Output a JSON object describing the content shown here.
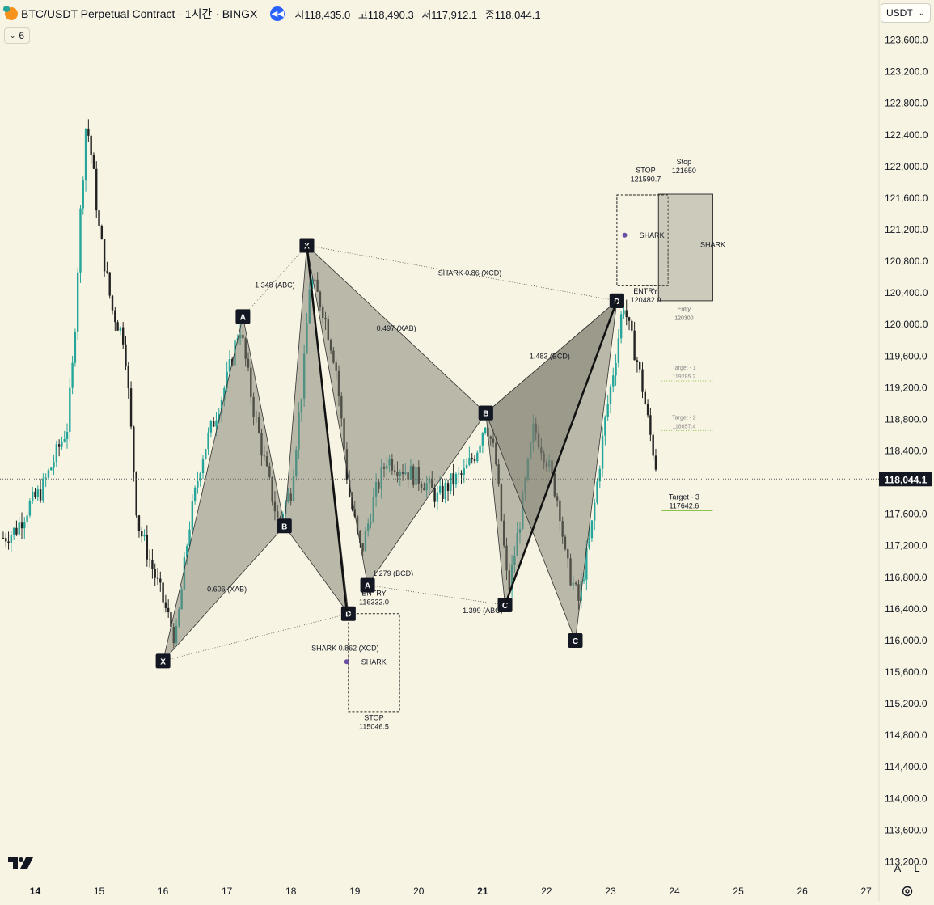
{
  "header": {
    "symbol": "BTC/USDT Perpetual Contract · 1시간 · BINGX",
    "ohlc": [
      "시118,435.0",
      "고118,490.3",
      "저117,912.1",
      "종118,044.1"
    ],
    "indicator_count": "6",
    "currency": "USDT"
  },
  "colors": {
    "background": "#f8f4e3",
    "up": "#26a69a",
    "down": "#222222",
    "pattern_fill": "#7c7b6e",
    "target_line": "#8bc34a",
    "grid_text": "#131722",
    "replay": "#2962ff"
  },
  "price_axis": {
    "labels": [
      "123,600.0",
      "123,200.0",
      "122,800.0",
      "122,400.0",
      "122,000.0",
      "121,600.0",
      "121,200.0",
      "120,800.0",
      "120,400.0",
      "120,000.0",
      "119,600.0",
      "119,200.0",
      "118,800.0",
      "118,400.0",
      "117,600.0",
      "117,200.0",
      "116,800.0",
      "116,400.0",
      "116,000.0",
      "115,600.0",
      "115,200.0",
      "114,800.0",
      "114,400.0",
      "114,000.0",
      "113,600.0",
      "113,200.0"
    ],
    "last_price": "118,044.1"
  },
  "time_axis": {
    "labels": [
      "14",
      "15",
      "16",
      "17",
      "18",
      "19",
      "20",
      "21",
      "22",
      "23",
      "24",
      "25",
      "26",
      "27"
    ],
    "bold": [
      "14",
      "21"
    ]
  },
  "chart_data": {
    "type": "line",
    "title": "BTC/USDT Perpetual Contract · 1시간 · BINGX",
    "xlabel": "",
    "ylabel": "",
    "ylim": [
      113000,
      123800
    ],
    "xlim": [
      13.45,
      27.2
    ],
    "close_last": 118044.1,
    "series": [
      {
        "x": [
          13.5,
          13.7,
          13.9,
          14.1,
          14.3,
          14.5,
          14.6,
          14.7,
          14.8,
          14.9,
          15.0,
          15.2,
          15.4,
          15.6,
          15.8,
          16.0,
          16.2,
          16.4,
          16.6,
          16.8,
          17.0,
          17.2,
          17.4,
          17.6,
          17.8,
          18.0,
          18.2,
          18.3,
          18.5,
          18.7,
          18.9,
          19.1,
          19.3,
          19.5,
          19.7,
          19.9,
          20.1,
          20.3,
          20.5,
          20.7,
          20.9,
          21.05,
          21.2,
          21.4,
          21.6,
          21.8,
          22.0,
          22.2,
          22.3,
          22.5,
          22.7,
          22.9,
          23.0,
          23.1,
          23.2,
          23.3,
          23.4,
          23.5,
          23.6,
          23.75
        ],
        "values": [
          117300,
          117400,
          117700,
          117900,
          118300,
          118700,
          119600,
          121300,
          122600,
          122000,
          121200,
          120200,
          119800,
          117500,
          117000,
          116500,
          116000,
          117400,
          118300,
          118800,
          119300,
          120000,
          119000,
          118200,
          117500,
          117900,
          119400,
          120600,
          120200,
          119500,
          117900,
          117100,
          117800,
          118300,
          118200,
          118100,
          118000,
          117800,
          118000,
          118100,
          118400,
          118800,
          118300,
          116600,
          117600,
          118700,
          118300,
          117700,
          117000,
          116500,
          117400,
          118700,
          119200,
          119700,
          120300,
          119900,
          119600,
          119200,
          118700,
          118044.1
        ]
      }
    ],
    "patterns": [
      {
        "name": "SHARK",
        "points": [
          {
            "label": "X",
            "x": 16.0,
            "y": 115740
          },
          {
            "label": "A",
            "x": 17.25,
            "y": 120100
          },
          {
            "label": "B",
            "x": 17.9,
            "y": 117450
          },
          {
            "label": "C",
            "x": 18.25,
            "y": 121000
          },
          {
            "label": "D",
            "x": 18.9,
            "y": 116340
          }
        ],
        "ratios": [
          "0.606 (XAB)",
          "1.348 (ABC)",
          "SHARK 0.862 (XCD)"
        ]
      },
      {
        "name": "SHARK",
        "points": [
          {
            "label": "X",
            "x": 18.25,
            "y": 121000
          },
          {
            "label": "A",
            "x": 19.2,
            "y": 116700
          },
          {
            "label": "B",
            "x": 21.05,
            "y": 118880
          },
          {
            "label": "C",
            "x": 21.35,
            "y": 116450
          },
          {
            "label": "D",
            "x": 23.1,
            "y": 120300
          }
        ],
        "ratios": [
          "0.497 (XAB)",
          "1.279 (BCD)",
          "1.399 (ABC)",
          "SHARK 0.86 (XCD)"
        ]
      },
      {
        "name": "SHARK",
        "points": [
          {
            "label": "B",
            "x": 21.05,
            "y": 118880
          },
          {
            "label": "C",
            "x": 22.45,
            "y": 116000
          },
          {
            "label": "D",
            "x": 23.1,
            "y": 120300
          }
        ],
        "ratios": [
          "1.483 (BCD)"
        ]
      }
    ],
    "annotations": [
      {
        "text": "ENTRY",
        "value": "116332.0"
      },
      {
        "text": "STOP",
        "value": "115046.5"
      },
      {
        "text": "ENTRY",
        "value": "120482.0"
      },
      {
        "text": "STOP",
        "value": "121590.7"
      },
      {
        "text": "Stop",
        "value": "121650"
      },
      {
        "text": "Entry",
        "value": "120300"
      },
      {
        "text": "Target - 1",
        "value": "119285.2"
      },
      {
        "text": "Target - 2",
        "value": "118657.4"
      },
      {
        "text": "Target - 3",
        "value": "117642.6"
      }
    ],
    "shark_labels": [
      "SHARK",
      "SHARK",
      "SHARK"
    ],
    "grid": false
  },
  "footer": {
    "auto_label": "A",
    "log_label": "L"
  }
}
